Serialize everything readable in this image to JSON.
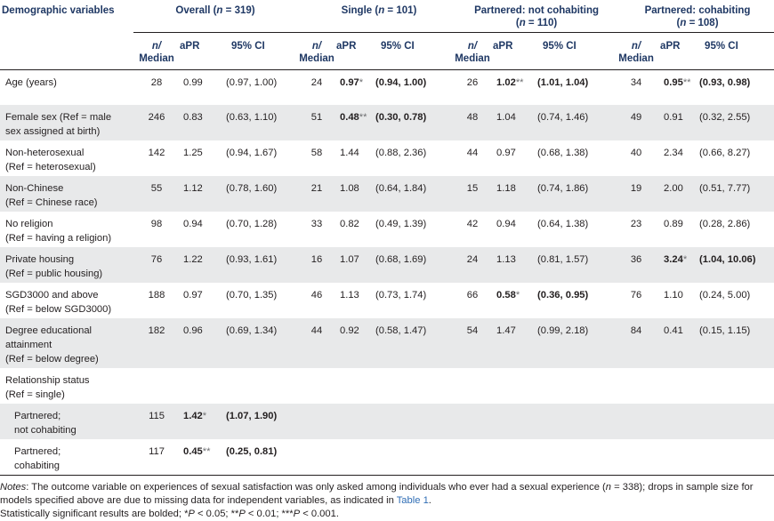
{
  "header": {
    "demographic": "Demographic variables",
    "groups": [
      {
        "label": "Overall",
        "n_label": "n",
        "n_value": "319"
      },
      {
        "label": "Single",
        "n_label": "n",
        "n_value": "101"
      },
      {
        "label": "Partnered: not cohabiting",
        "n_label": "n",
        "n_value": "110"
      },
      {
        "label": "Partnered: cohabiting",
        "n_label": "n",
        "n_value": "108"
      }
    ],
    "sub": {
      "n": "n/",
      "median": "Median",
      "apr": "aPR",
      "ci": "95% CI"
    }
  },
  "rows": [
    {
      "label1": "Age (years)",
      "label2": "",
      "cells": [
        {
          "n": "28",
          "apr": "0.99",
          "apr_bold": false,
          "sig": "",
          "ci": "(0.97, 1.00)",
          "ci_bold": false
        },
        {
          "n": "24",
          "apr": "0.97",
          "apr_bold": true,
          "sig": "*",
          "ci": "(0.94, 1.00)",
          "ci_bold": true
        },
        {
          "n": "26",
          "apr": "1.02",
          "apr_bold": true,
          "sig": "**",
          "ci": "(1.01, 1.04)",
          "ci_bold": true
        },
        {
          "n": "34",
          "apr": "0.95",
          "apr_bold": true,
          "sig": "**",
          "ci": "(0.93, 0.98)",
          "ci_bold": true
        }
      ]
    },
    {
      "label1": "Female sex (Ref = male",
      "label2": "sex assigned at birth)",
      "cells": [
        {
          "n": "246",
          "apr": "0.83",
          "apr_bold": false,
          "sig": "",
          "ci": "(0.63, 1.10)",
          "ci_bold": false
        },
        {
          "n": "51",
          "apr": "0.48",
          "apr_bold": true,
          "sig": "**",
          "ci": "(0.30, 0.78)",
          "ci_bold": true
        },
        {
          "n": "48",
          "apr": "1.04",
          "apr_bold": false,
          "sig": "",
          "ci": "(0.74, 1.46)",
          "ci_bold": false
        },
        {
          "n": "49",
          "apr": "0.91",
          "apr_bold": false,
          "sig": "",
          "ci": "(0.32, 2.55)",
          "ci_bold": false
        }
      ]
    },
    {
      "label1": "Non-heterosexual",
      "label2": "(Ref = heterosexual)",
      "cells": [
        {
          "n": "142",
          "apr": "1.25",
          "apr_bold": false,
          "sig": "",
          "ci": "(0.94, 1.67)",
          "ci_bold": false
        },
        {
          "n": "58",
          "apr": "1.44",
          "apr_bold": false,
          "sig": "",
          "ci": "(0.88, 2.36)",
          "ci_bold": false
        },
        {
          "n": "44",
          "apr": "0.97",
          "apr_bold": false,
          "sig": "",
          "ci": "(0.68, 1.38)",
          "ci_bold": false
        },
        {
          "n": "40",
          "apr": "2.34",
          "apr_bold": false,
          "sig": "",
          "ci": "(0.66, 8.27)",
          "ci_bold": false
        }
      ]
    },
    {
      "label1": "Non-Chinese",
      "label2": "(Ref = Chinese race)",
      "cells": [
        {
          "n": "55",
          "apr": "1.12",
          "apr_bold": false,
          "sig": "",
          "ci": "(0.78, 1.60)",
          "ci_bold": false
        },
        {
          "n": "21",
          "apr": "1.08",
          "apr_bold": false,
          "sig": "",
          "ci": "(0.64, 1.84)",
          "ci_bold": false
        },
        {
          "n": "15",
          "apr": "1.18",
          "apr_bold": false,
          "sig": "",
          "ci": "(0.74, 1.86)",
          "ci_bold": false
        },
        {
          "n": "19",
          "apr": "2.00",
          "apr_bold": false,
          "sig": "",
          "ci": "(0.51, 7.77)",
          "ci_bold": false
        }
      ]
    },
    {
      "label1": "No religion",
      "label2": "(Ref = having a religion)",
      "cells": [
        {
          "n": "98",
          "apr": "0.94",
          "apr_bold": false,
          "sig": "",
          "ci": "(0.70, 1.28)",
          "ci_bold": false
        },
        {
          "n": "33",
          "apr": "0.82",
          "apr_bold": false,
          "sig": "",
          "ci": "(0.49, 1.39)",
          "ci_bold": false
        },
        {
          "n": "42",
          "apr": "0.94",
          "apr_bold": false,
          "sig": "",
          "ci": "(0.64, 1.38)",
          "ci_bold": false
        },
        {
          "n": "23",
          "apr": "0.89",
          "apr_bold": false,
          "sig": "",
          "ci": "(0.28, 2.86)",
          "ci_bold": false
        }
      ]
    },
    {
      "label1": "Private housing",
      "label2": "(Ref = public housing)",
      "cells": [
        {
          "n": "76",
          "apr": "1.22",
          "apr_bold": false,
          "sig": "",
          "ci": "(0.93, 1.61)",
          "ci_bold": false
        },
        {
          "n": "16",
          "apr": "1.07",
          "apr_bold": false,
          "sig": "",
          "ci": "(0.68, 1.69)",
          "ci_bold": false
        },
        {
          "n": "24",
          "apr": "1.13",
          "apr_bold": false,
          "sig": "",
          "ci": "(0.81, 1.57)",
          "ci_bold": false
        },
        {
          "n": "36",
          "apr": "3.24",
          "apr_bold": true,
          "sig": "*",
          "ci": "(1.04, 10.06)",
          "ci_bold": true
        }
      ]
    },
    {
      "label1": "SGD3000 and above",
      "label2": "(Ref = below SGD3000)",
      "cells": [
        {
          "n": "188",
          "apr": "0.97",
          "apr_bold": false,
          "sig": "",
          "ci": "(0.70, 1.35)",
          "ci_bold": false
        },
        {
          "n": "46",
          "apr": "1.13",
          "apr_bold": false,
          "sig": "",
          "ci": "(0.73, 1.74)",
          "ci_bold": false
        },
        {
          "n": "66",
          "apr": "0.58",
          "apr_bold": true,
          "sig": "*",
          "ci": "(0.36, 0.95)",
          "ci_bold": true
        },
        {
          "n": "76",
          "apr": "1.10",
          "apr_bold": false,
          "sig": "",
          "ci": "(0.24, 5.00)",
          "ci_bold": false
        }
      ]
    },
    {
      "label1": "Degree educational",
      "label2": "attainment",
      "label3": "(Ref = below degree)",
      "cells": [
        {
          "n": "182",
          "apr": "0.96",
          "apr_bold": false,
          "sig": "",
          "ci": "(0.69, 1.34)",
          "ci_bold": false
        },
        {
          "n": "44",
          "apr": "0.92",
          "apr_bold": false,
          "sig": "",
          "ci": "(0.58, 1.47)",
          "ci_bold": false
        },
        {
          "n": "54",
          "apr": "1.47",
          "apr_bold": false,
          "sig": "",
          "ci": "(0.99, 2.18)",
          "ci_bold": false
        },
        {
          "n": "84",
          "apr": "0.41",
          "apr_bold": false,
          "sig": "",
          "ci": "(0.15, 1.15)",
          "ci_bold": false
        }
      ]
    },
    {
      "label1": "Relationship status",
      "label2": "(Ref = single)",
      "cells": []
    },
    {
      "label1": "Partnered;",
      "label2": "not cohabiting",
      "indent": true,
      "cells": [
        {
          "n": "115",
          "apr": "1.42",
          "apr_bold": true,
          "sig": "*",
          "ci": "(1.07, 1.90)",
          "ci_bold": true
        }
      ]
    },
    {
      "label1": "Partnered;",
      "label2": "cohabiting",
      "indent": true,
      "cells": [
        {
          "n": "117",
          "apr": "0.45",
          "apr_bold": true,
          "sig": "**",
          "ci": "(0.25, 0.81)",
          "ci_bold": true
        }
      ]
    }
  ],
  "notes": {
    "line1_prefix": "Notes",
    "line1_a": ": The outcome variable on experiences of sexual satisfaction was only asked among individuals who ever had a sexual experience (",
    "line1_n": "n",
    "line1_b": " = 338); drops in sample size for",
    "line2": "models specified above are due to missing data for independent variables, as indicated in ",
    "line2_link": "Table 1",
    "line2_end": ".",
    "line3_a": "Statistically significant results are bolded; *",
    "p": "P",
    "line3_b": " < 0.05; **",
    "line3_c": " < 0.01; ***",
    "line3_d": " < 0.001."
  }
}
